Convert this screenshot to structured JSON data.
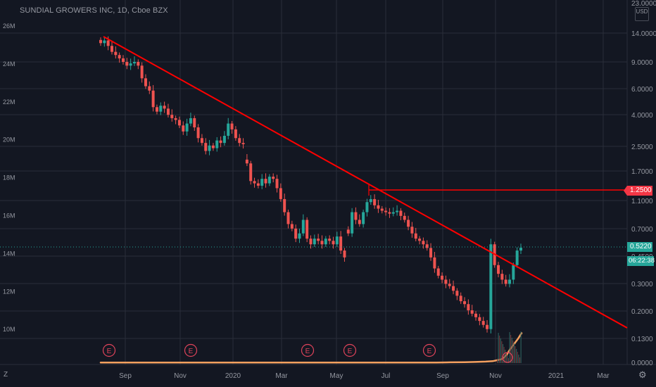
{
  "header": {
    "symbol_title": "SUNDIAL GROWERS INC, 1D, Cboe BZX"
  },
  "currency_button": {
    "label": "USD"
  },
  "price_axis": {
    "top_partial_label": "23.0000"
  },
  "tags": {
    "resistance": "1.2500",
    "last_price": "0.5220",
    "countdown": "06:22:38"
  },
  "controls": {
    "zoom_label": "Z",
    "settings_icon": "gear-icon"
  },
  "colors": {
    "background": "#131722",
    "up": "#26a69a",
    "down": "#ef5350",
    "trendline": "#ff0000",
    "volume_ma": "#f5a05f",
    "earnings": "#e0435a",
    "grid": "#2a2e39"
  },
  "chart_data": {
    "type": "candlestick",
    "title": "SUNDIAL GROWERS INC, 1D, Cboe BZX",
    "x_ticks": [
      "Sep",
      "Nov",
      "2020",
      "Mar",
      "May",
      "Jul",
      "Sep",
      "Nov",
      "2021",
      "Mar"
    ],
    "price_axis": {
      "scale": "log",
      "labels": [
        "14.0000",
        "9.0000",
        "6.0000",
        "4.0000",
        "2.5000",
        "1.7000",
        "1.1000",
        "0.7000",
        "0.4500",
        "0.3000",
        "0.2000",
        "0.1300",
        "0.0000"
      ]
    },
    "volume_axis": {
      "labels": [
        "26M",
        "24M",
        "22M",
        "20M",
        "18M",
        "16M",
        "14M",
        "12M",
        "10M"
      ],
      "ylim_millions": [
        8,
        26
      ]
    },
    "price_series_closes": [
      12,
      12.5,
      11.5,
      10.5,
      10,
      9.5,
      9,
      8.5,
      8.8,
      9,
      8.5,
      7,
      6.2,
      5.8,
      4.5,
      4.2,
      4.6,
      4.4,
      4,
      3.8,
      3.7,
      3.4,
      3.1,
      3.5,
      3.8,
      3.3,
      2.8,
      2.6,
      2.3,
      2.5,
      2.4,
      2.7,
      2.6,
      2.9,
      3.5,
      3.2,
      2.8,
      2.6,
      2.55,
      1.9,
      1.45,
      1.4,
      1.35,
      1.5,
      1.4,
      1.55,
      1.5,
      1.3,
      1.1,
      0.9,
      0.75,
      0.7,
      0.6,
      0.65,
      0.8,
      0.6,
      0.55,
      0.6,
      0.58,
      0.55,
      0.6,
      0.58,
      0.55,
      0.62,
      0.5,
      0.45,
      0.65,
      0.9,
      0.8,
      0.75,
      0.9,
      1.05,
      1.1,
      1.0,
      0.95,
      0.92,
      0.9,
      0.88,
      0.9,
      0.92,
      0.85,
      0.8,
      0.72,
      0.65,
      0.6,
      0.58,
      0.55,
      0.52,
      0.45,
      0.38,
      0.34,
      0.32,
      0.3,
      0.29,
      0.27,
      0.25,
      0.23,
      0.22,
      0.2,
      0.19,
      0.18,
      0.17,
      0.16,
      0.15,
      0.55,
      0.4,
      0.35,
      0.32,
      0.3,
      0.32,
      0.4,
      0.5,
      0.522
    ],
    "volume_ma_millions": [
      8.03,
      8.03,
      8.03,
      8.03,
      8.03,
      8.03,
      8.03,
      8.04,
      8.05,
      8.06,
      8.08,
      8.1,
      8.15,
      8.2,
      8.3,
      8.45,
      8.7,
      8.9,
      9.1,
      9.3,
      9.6
    ],
    "earnings_markers": [
      "E",
      "E",
      "E",
      "E",
      "E"
    ],
    "annotations": [
      "descending trendline from Aug 2019 high",
      "horizontal resistance at 1.2500",
      "dotted last-price line at 0.5220"
    ]
  }
}
